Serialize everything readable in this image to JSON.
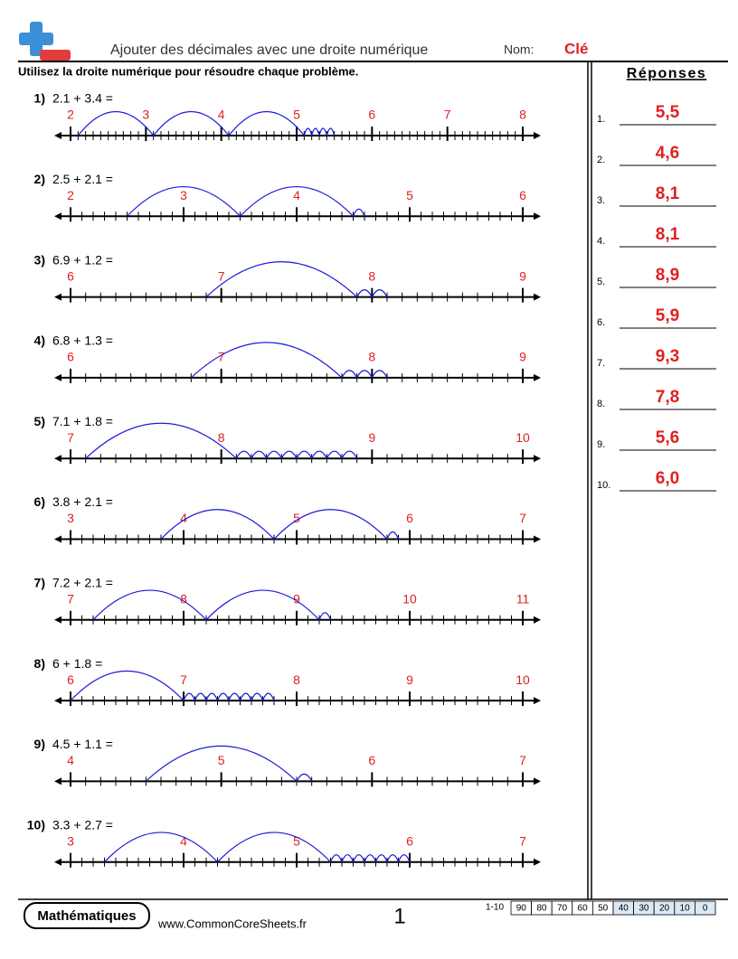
{
  "header": {
    "title": "Ajouter des décimales avec une droite numérique",
    "name_label": "Nom:",
    "name_value": "Clé",
    "instructions": "Utilisez la droite numérique pour résoudre chaque problème."
  },
  "problems": [
    {
      "number": "1)",
      "expression": "2.1 + 3.4 =",
      "labels": [
        "2",
        "3",
        "4",
        "5",
        "6",
        "7",
        "8"
      ]
    },
    {
      "number": "2)",
      "expression": "2.5 + 2.1 =",
      "labels": [
        "2",
        "3",
        "4",
        "5",
        "6"
      ]
    },
    {
      "number": "3)",
      "expression": "6.9 + 1.2 =",
      "labels": [
        "6",
        "7",
        "8",
        "9"
      ]
    },
    {
      "number": "4)",
      "expression": "6.8 + 1.3 =",
      "labels": [
        "6",
        "7",
        "8",
        "9"
      ]
    },
    {
      "number": "5)",
      "expression": "7.1 + 1.8 =",
      "labels": [
        "7",
        "8",
        "9",
        "10"
      ]
    },
    {
      "number": "6)",
      "expression": "3.8 + 2.1 =",
      "labels": [
        "3",
        "4",
        "5",
        "6",
        "7"
      ]
    },
    {
      "number": "7)",
      "expression": "7.2 + 2.1 =",
      "labels": [
        "7",
        "8",
        "9",
        "10",
        "11"
      ]
    },
    {
      "number": "8)",
      "expression": "6 + 1.8 =",
      "labels": [
        "6",
        "7",
        "8",
        "9",
        "10"
      ]
    },
    {
      "number": "9)",
      "expression": "4.5 + 1.1 =",
      "labels": [
        "4",
        "5",
        "6",
        "7"
      ]
    },
    {
      "number": "10)",
      "expression": "3.3 + 2.7 =",
      "labels": [
        "3",
        "4",
        "5",
        "6",
        "7"
      ]
    }
  ],
  "answers": {
    "title": "Réponses",
    "items": [
      {
        "number": "1.",
        "value": "5,5"
      },
      {
        "number": "2.",
        "value": "4,6"
      },
      {
        "number": "3.",
        "value": "8,1"
      },
      {
        "number": "4.",
        "value": "8,1"
      },
      {
        "number": "5.",
        "value": "8,9"
      },
      {
        "number": "6.",
        "value": "5,9"
      },
      {
        "number": "7.",
        "value": "9,3"
      },
      {
        "number": "8.",
        "value": "7,8"
      },
      {
        "number": "9.",
        "value": "5,6"
      },
      {
        "number": "10.",
        "value": "6,0"
      }
    ]
  },
  "footer": {
    "subject": "Mathématiques",
    "website": "www.CommonCoreSheets.fr",
    "page": "1",
    "score_label": "1-10",
    "scores": [
      "90",
      "80",
      "70",
      "60",
      "50",
      "40",
      "30",
      "20",
      "10",
      "0"
    ]
  }
}
